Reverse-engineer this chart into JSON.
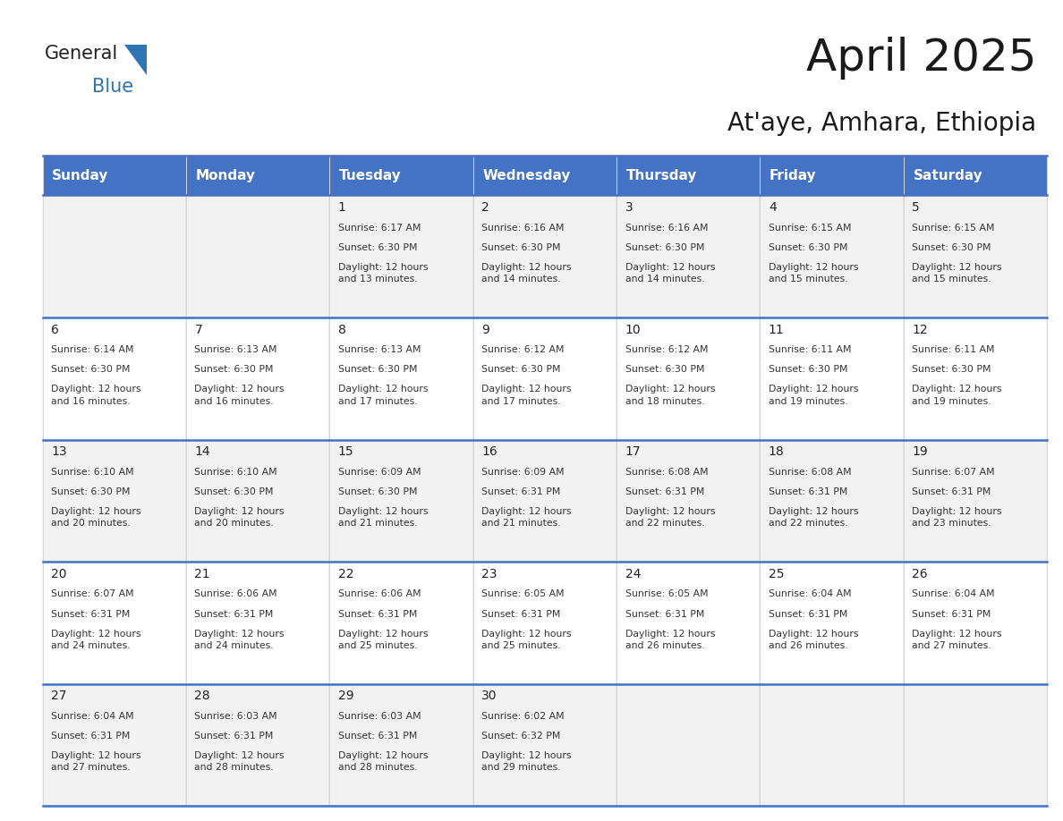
{
  "title": "April 2025",
  "subtitle": "At'aye, Amhara, Ethiopia",
  "header_color": "#4472C4",
  "header_text_color": "#FFFFFF",
  "header_font_size": 11,
  "day_names": [
    "Sunday",
    "Monday",
    "Tuesday",
    "Wednesday",
    "Thursday",
    "Friday",
    "Saturday"
  ],
  "background_color": "#FFFFFF",
  "title_fontsize": 36,
  "subtitle_fontsize": 20,
  "calendar_data": [
    [
      {
        "day": "",
        "sunrise": "",
        "sunset": "",
        "daylight": ""
      },
      {
        "day": "",
        "sunrise": "",
        "sunset": "",
        "daylight": ""
      },
      {
        "day": "1",
        "sunrise": "Sunrise: 6:17 AM",
        "sunset": "Sunset: 6:30 PM",
        "daylight": "Daylight: 12 hours\nand 13 minutes."
      },
      {
        "day": "2",
        "sunrise": "Sunrise: 6:16 AM",
        "sunset": "Sunset: 6:30 PM",
        "daylight": "Daylight: 12 hours\nand 14 minutes."
      },
      {
        "day": "3",
        "sunrise": "Sunrise: 6:16 AM",
        "sunset": "Sunset: 6:30 PM",
        "daylight": "Daylight: 12 hours\nand 14 minutes."
      },
      {
        "day": "4",
        "sunrise": "Sunrise: 6:15 AM",
        "sunset": "Sunset: 6:30 PM",
        "daylight": "Daylight: 12 hours\nand 15 minutes."
      },
      {
        "day": "5",
        "sunrise": "Sunrise: 6:15 AM",
        "sunset": "Sunset: 6:30 PM",
        "daylight": "Daylight: 12 hours\nand 15 minutes."
      }
    ],
    [
      {
        "day": "6",
        "sunrise": "Sunrise: 6:14 AM",
        "sunset": "Sunset: 6:30 PM",
        "daylight": "Daylight: 12 hours\nand 16 minutes."
      },
      {
        "day": "7",
        "sunrise": "Sunrise: 6:13 AM",
        "sunset": "Sunset: 6:30 PM",
        "daylight": "Daylight: 12 hours\nand 16 minutes."
      },
      {
        "day": "8",
        "sunrise": "Sunrise: 6:13 AM",
        "sunset": "Sunset: 6:30 PM",
        "daylight": "Daylight: 12 hours\nand 17 minutes."
      },
      {
        "day": "9",
        "sunrise": "Sunrise: 6:12 AM",
        "sunset": "Sunset: 6:30 PM",
        "daylight": "Daylight: 12 hours\nand 17 minutes."
      },
      {
        "day": "10",
        "sunrise": "Sunrise: 6:12 AM",
        "sunset": "Sunset: 6:30 PM",
        "daylight": "Daylight: 12 hours\nand 18 minutes."
      },
      {
        "day": "11",
        "sunrise": "Sunrise: 6:11 AM",
        "sunset": "Sunset: 6:30 PM",
        "daylight": "Daylight: 12 hours\nand 19 minutes."
      },
      {
        "day": "12",
        "sunrise": "Sunrise: 6:11 AM",
        "sunset": "Sunset: 6:30 PM",
        "daylight": "Daylight: 12 hours\nand 19 minutes."
      }
    ],
    [
      {
        "day": "13",
        "sunrise": "Sunrise: 6:10 AM",
        "sunset": "Sunset: 6:30 PM",
        "daylight": "Daylight: 12 hours\nand 20 minutes."
      },
      {
        "day": "14",
        "sunrise": "Sunrise: 6:10 AM",
        "sunset": "Sunset: 6:30 PM",
        "daylight": "Daylight: 12 hours\nand 20 minutes."
      },
      {
        "day": "15",
        "sunrise": "Sunrise: 6:09 AM",
        "sunset": "Sunset: 6:30 PM",
        "daylight": "Daylight: 12 hours\nand 21 minutes."
      },
      {
        "day": "16",
        "sunrise": "Sunrise: 6:09 AM",
        "sunset": "Sunset: 6:31 PM",
        "daylight": "Daylight: 12 hours\nand 21 minutes."
      },
      {
        "day": "17",
        "sunrise": "Sunrise: 6:08 AM",
        "sunset": "Sunset: 6:31 PM",
        "daylight": "Daylight: 12 hours\nand 22 minutes."
      },
      {
        "day": "18",
        "sunrise": "Sunrise: 6:08 AM",
        "sunset": "Sunset: 6:31 PM",
        "daylight": "Daylight: 12 hours\nand 22 minutes."
      },
      {
        "day": "19",
        "sunrise": "Sunrise: 6:07 AM",
        "sunset": "Sunset: 6:31 PM",
        "daylight": "Daylight: 12 hours\nand 23 minutes."
      }
    ],
    [
      {
        "day": "20",
        "sunrise": "Sunrise: 6:07 AM",
        "sunset": "Sunset: 6:31 PM",
        "daylight": "Daylight: 12 hours\nand 24 minutes."
      },
      {
        "day": "21",
        "sunrise": "Sunrise: 6:06 AM",
        "sunset": "Sunset: 6:31 PM",
        "daylight": "Daylight: 12 hours\nand 24 minutes."
      },
      {
        "day": "22",
        "sunrise": "Sunrise: 6:06 AM",
        "sunset": "Sunset: 6:31 PM",
        "daylight": "Daylight: 12 hours\nand 25 minutes."
      },
      {
        "day": "23",
        "sunrise": "Sunrise: 6:05 AM",
        "sunset": "Sunset: 6:31 PM",
        "daylight": "Daylight: 12 hours\nand 25 minutes."
      },
      {
        "day": "24",
        "sunrise": "Sunrise: 6:05 AM",
        "sunset": "Sunset: 6:31 PM",
        "daylight": "Daylight: 12 hours\nand 26 minutes."
      },
      {
        "day": "25",
        "sunrise": "Sunrise: 6:04 AM",
        "sunset": "Sunset: 6:31 PM",
        "daylight": "Daylight: 12 hours\nand 26 minutes."
      },
      {
        "day": "26",
        "sunrise": "Sunrise: 6:04 AM",
        "sunset": "Sunset: 6:31 PM",
        "daylight": "Daylight: 12 hours\nand 27 minutes."
      }
    ],
    [
      {
        "day": "27",
        "sunrise": "Sunrise: 6:04 AM",
        "sunset": "Sunset: 6:31 PM",
        "daylight": "Daylight: 12 hours\nand 27 minutes."
      },
      {
        "day": "28",
        "sunrise": "Sunrise: 6:03 AM",
        "sunset": "Sunset: 6:31 PM",
        "daylight": "Daylight: 12 hours\nand 28 minutes."
      },
      {
        "day": "29",
        "sunrise": "Sunrise: 6:03 AM",
        "sunset": "Sunset: 6:31 PM",
        "daylight": "Daylight: 12 hours\nand 28 minutes."
      },
      {
        "day": "30",
        "sunrise": "Sunrise: 6:02 AM",
        "sunset": "Sunset: 6:32 PM",
        "daylight": "Daylight: 12 hours\nand 29 minutes."
      },
      {
        "day": "",
        "sunrise": "",
        "sunset": "",
        "daylight": ""
      },
      {
        "day": "",
        "sunrise": "",
        "sunset": "",
        "daylight": ""
      },
      {
        "day": "",
        "sunrise": "",
        "sunset": "",
        "daylight": ""
      }
    ]
  ]
}
